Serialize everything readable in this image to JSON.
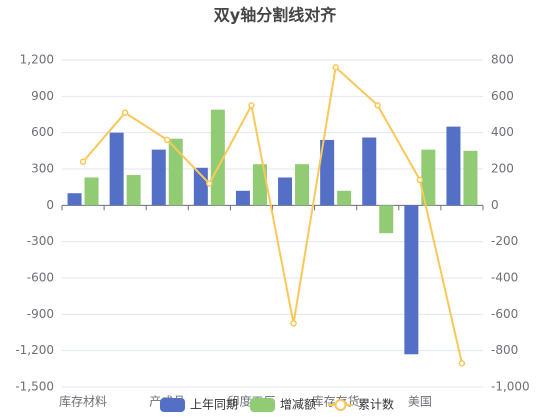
{
  "chart_data": {
    "type": "bar",
    "title": "双y轴分割线对齐",
    "categories": [
      "库存材料",
      null,
      "产成品",
      null,
      "印度工厂",
      null,
      "库存存货",
      null,
      "美国",
      null
    ],
    "series": [
      {
        "name": "上年同期",
        "type": "bar",
        "color": "#5470c6",
        "values": [
          100,
          600,
          460,
          310,
          120,
          230,
          540,
          560,
          -1230,
          650
        ]
      },
      {
        "name": "增减额",
        "type": "bar",
        "color": "#91cc75",
        "values": [
          230,
          250,
          550,
          790,
          340,
          340,
          120,
          -230,
          460,
          450
        ]
      },
      {
        "name": "累计数",
        "type": "line",
        "axis": "y2",
        "color": "#fac858",
        "values": [
          240,
          510,
          360,
          120,
          550,
          -650,
          760,
          550,
          140,
          -870
        ]
      }
    ],
    "ylim": [
      -1500,
      1200
    ],
    "yticks": [
      {
        "value": -1500,
        "label": "-1,500"
      },
      {
        "value": -1200,
        "label": "-1,200"
      },
      -900,
      -600,
      -300,
      0,
      300,
      600,
      900,
      {
        "value": 1200,
        "label": "1,200"
      }
    ],
    "y2lim": [
      -1000,
      800
    ],
    "y2ticks": [
      {
        "value": -1000,
        "label": "-1,000"
      },
      -800,
      -600,
      -400,
      -200,
      0,
      200,
      400,
      600,
      800
    ],
    "grid": true,
    "legend": "bottom"
  }
}
